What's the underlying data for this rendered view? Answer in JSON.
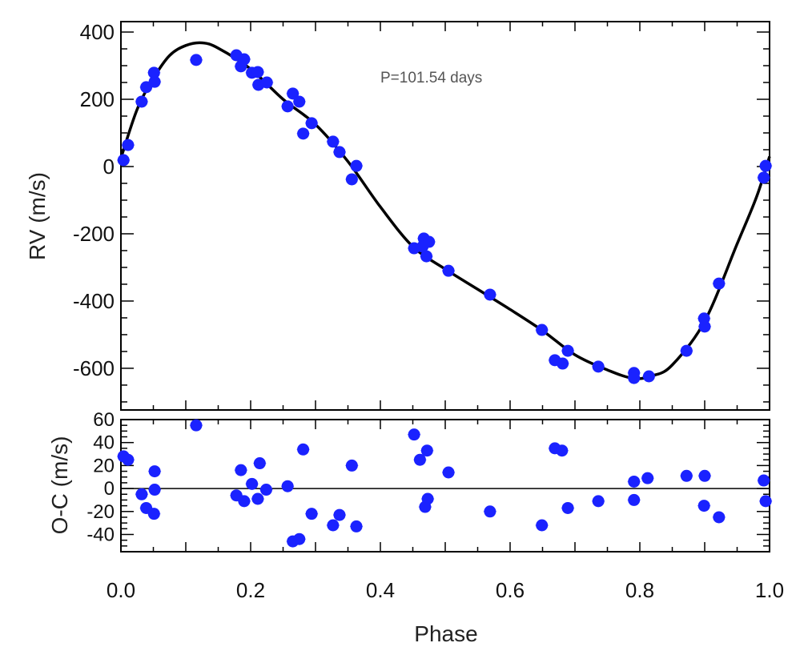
{
  "chart_data": [
    {
      "type": "scatter",
      "panel": "top",
      "annotation": "P=101.54 days",
      "xlabel": "",
      "ylabel": "RV (m/s)",
      "xlim": [
        0,
        1
      ],
      "ylim": [
        -724,
        431
      ],
      "yticks": [
        400,
        200,
        0,
        -200,
        -400,
        -600
      ],
      "point_color": "#1a22ff",
      "curve_color": "#000000",
      "points": {
        "x": [
          0.004,
          0.011,
          0.032,
          0.039,
          0.051,
          0.052,
          0.116,
          0.178,
          0.185,
          0.19,
          0.202,
          0.211,
          0.212,
          0.225,
          0.257,
          0.265,
          0.275,
          0.281,
          0.294,
          0.327,
          0.337,
          0.356,
          0.363,
          0.452,
          0.465,
          0.467,
          0.471,
          0.475,
          0.505,
          0.569,
          0.649,
          0.669,
          0.681,
          0.689,
          0.736,
          0.791,
          0.791,
          0.814,
          0.872,
          0.899,
          0.9,
          0.922,
          0.991,
          0.994
        ],
        "y": [
          19,
          64,
          193,
          236,
          279,
          252,
          317,
          331,
          298,
          319,
          279,
          281,
          243,
          250,
          179,
          217,
          193,
          98,
          129,
          74,
          43,
          -38,
          2,
          -243,
          -238,
          -214,
          -267,
          -224,
          -310,
          -381,
          -486,
          -576,
          -586,
          -548,
          -595,
          -614,
          -629,
          -624,
          -548,
          -452,
          -476,
          -348,
          -33,
          2
        ]
      },
      "model_curve": {
        "x": [
          0,
          0.025,
          0.05,
          0.075,
          0.1,
          0.125,
          0.15,
          0.2,
          0.25,
          0.3,
          0.35,
          0.4,
          0.45,
          0.5,
          0.55,
          0.6,
          0.65,
          0.7,
          0.75,
          0.79,
          0.82,
          0.85,
          0.9,
          0.95,
          0.98,
          1.0
        ],
        "y": [
          25,
          170,
          262,
          330,
          360,
          368,
          352,
          290,
          200,
          125,
          15,
          -120,
          -238,
          -305,
          -365,
          -425,
          -488,
          -560,
          -605,
          -630,
          -622,
          -590,
          -460,
          -230,
          -90,
          30
        ]
      }
    },
    {
      "type": "scatter",
      "panel": "bottom",
      "xlabel": "Phase",
      "ylabel": "O-C (m/s)",
      "xlim": [
        0,
        1
      ],
      "ylim": [
        -55,
        60
      ],
      "xticks": [
        "0.0",
        "0.2",
        "0.4",
        "0.6",
        "0.8",
        "1.0"
      ],
      "yticks": [
        60,
        40,
        20,
        0,
        -20,
        -40
      ],
      "zero_line": true,
      "point_color": "#1a22ff",
      "points": {
        "x": [
          0.004,
          0.011,
          0.032,
          0.039,
          0.051,
          0.052,
          0.052,
          0.116,
          0.178,
          0.185,
          0.19,
          0.202,
          0.211,
          0.214,
          0.224,
          0.257,
          0.265,
          0.275,
          0.281,
          0.294,
          0.327,
          0.337,
          0.363,
          0.356,
          0.452,
          0.461,
          0.472,
          0.473,
          0.469,
          0.505,
          0.569,
          0.649,
          0.669,
          0.68,
          0.689,
          0.736,
          0.791,
          0.791,
          0.812,
          0.872,
          0.9,
          0.899,
          0.922,
          0.991,
          0.994
        ],
        "y": [
          28,
          25,
          -5,
          -17,
          -22,
          -1,
          15,
          55,
          -6,
          16,
          -11,
          4,
          -9,
          22,
          -1,
          2,
          -46,
          -44,
          34,
          -22,
          -32,
          -23,
          -33,
          20,
          47,
          25,
          33,
          -9,
          -16,
          14,
          -20,
          -32,
          35,
          33,
          -17,
          -11,
          6,
          -10,
          9,
          11,
          11,
          -15,
          -25,
          7,
          -11
        ]
      }
    }
  ]
}
